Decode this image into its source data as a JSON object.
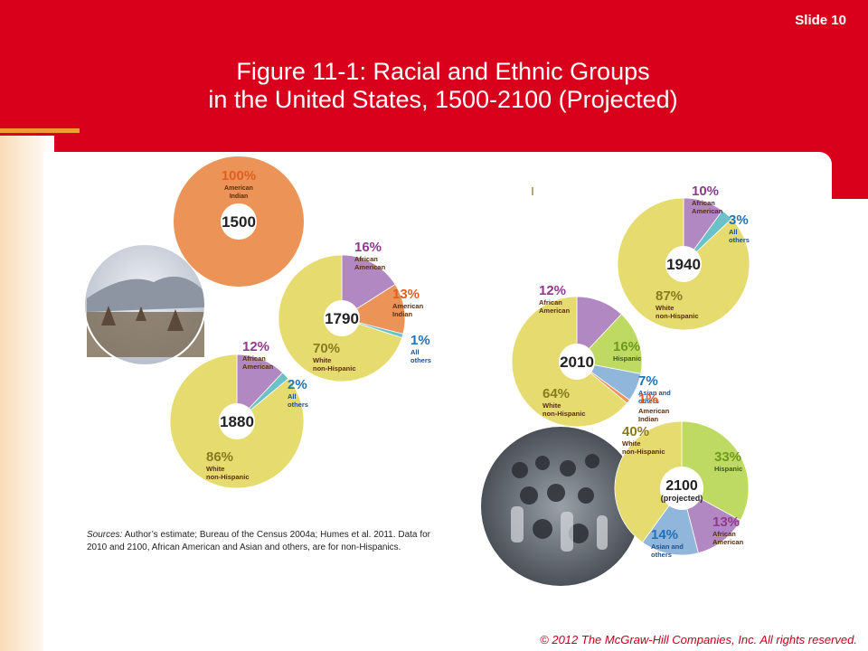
{
  "slide": {
    "number_label": "Slide 10",
    "title_line1": "Figure 11-1: Racial and Ethnic Groups",
    "title_line2": "in the United States, 1500-2100 (Projected)",
    "footer": "© 2012 The McGraw-Hill Companies, Inc. All rights reserved.",
    "sources_lead": "Sources:",
    "sources_text": " Author’s estimate; Bureau of the Census 2004a; Humes et al. 2011. Data for 2010 and 2100, African American and Asian and others, are for non-Hispanics."
  },
  "colors": {
    "header_red": "#d9001b",
    "white_non_hispanic": "#e5db6e",
    "african_american": "#b188c2",
    "american_indian": "#ec9457",
    "all_others": "#6cc1c8",
    "hispanic": "#bfda63",
    "asian_and_others": "#90b6dc",
    "percent_purple": "#8e3a8e",
    "percent_orange": "#e35d22",
    "percent_blue": "#1f72b8",
    "percent_olive": "#8a7a1f",
    "percent_green": "#6d9a1c",
    "label_dark": "#5a2d0c"
  },
  "chart_data": [
    {
      "type": "pie",
      "year": "1500",
      "slices": [
        {
          "pct_label": "100%",
          "label": "American Indian",
          "value": 100
        }
      ]
    },
    {
      "type": "pie",
      "year": "1790",
      "slices": [
        {
          "pct_label": "16%",
          "label": "African American",
          "value": 16
        },
        {
          "pct_label": "13%",
          "label": "American Indian",
          "value": 13
        },
        {
          "pct_label": "1%",
          "label": "All others",
          "value": 1
        },
        {
          "pct_label": "70%",
          "label": "White non-Hispanic",
          "value": 70
        }
      ]
    },
    {
      "type": "pie",
      "year": "1880",
      "slices": [
        {
          "pct_label": "12%",
          "label": "African American",
          "value": 12
        },
        {
          "pct_label": "2%",
          "label": "All others",
          "value": 2
        },
        {
          "pct_label": "86%",
          "label": "White non-Hispanic",
          "value": 86
        }
      ]
    },
    {
      "type": "pie",
      "year": "1940",
      "slices": [
        {
          "pct_label": "10%",
          "label": "African American",
          "value": 10
        },
        {
          "pct_label": "3%",
          "label": "All others",
          "value": 3
        },
        {
          "pct_label": "87%",
          "label": "White non-Hispanic",
          "value": 87
        }
      ]
    },
    {
      "type": "pie",
      "year": "2010",
      "slices": [
        {
          "pct_label": "12%",
          "label": "African American",
          "value": 12
        },
        {
          "pct_label": "16%",
          "label": "Hispanic",
          "value": 16
        },
        {
          "pct_label": "7%",
          "label": "Asian and others",
          "value": 7
        },
        {
          "pct_label": "1%",
          "label": "American Indian",
          "value": 1
        },
        {
          "pct_label": "64%",
          "label": "White non-Hispanic",
          "value": 64
        }
      ]
    },
    {
      "type": "pie",
      "year": "2100",
      "subtitle": "(projected)",
      "slices": [
        {
          "pct_label": "33%",
          "label": "Hispanic",
          "value": 33
        },
        {
          "pct_label": "13%",
          "label": "African American",
          "value": 13
        },
        {
          "pct_label": "14%",
          "label": "Asian and others",
          "value": 14
        },
        {
          "pct_label": "40%",
          "label": "White non-Hispanic",
          "value": 40
        }
      ]
    }
  ]
}
